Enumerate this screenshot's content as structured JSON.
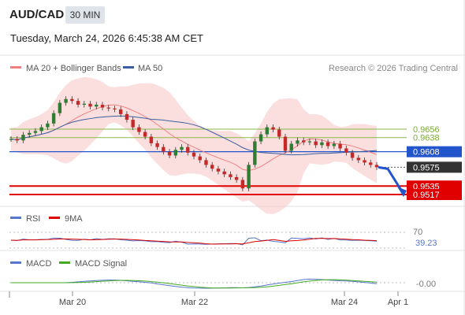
{
  "header": {
    "symbol": "AUD/CAD",
    "timeframe": "30 MIN",
    "datetime": "Tuesday, March 24, 2026 6:45:38 AM CET"
  },
  "legend": {
    "ma20": "MA 20 + Bollinger Bands",
    "ma50": "MA 50",
    "credit": "Research © 2026 Trading Central"
  },
  "colors": {
    "up": "#2e7d32",
    "down": "#c62828",
    "ma20": "#f08080",
    "ma50": "#3a5fa0",
    "band": "#f7c5c5",
    "support": "#e00000",
    "pivot": "#2255cc",
    "resistance": "#8ab84a",
    "last": "#333333",
    "rsi": "#5577cc",
    "rsi_ma": "#dd0000",
    "macd": "#5577cc",
    "macd_signal": "#44aa22"
  },
  "chart_data": {
    "type": "candlestick",
    "levels": [
      {
        "name": "resistance-1",
        "value": 0.9656,
        "label": "0.9656"
      },
      {
        "name": "resistance-2",
        "value": 0.9638,
        "label": "0.9638"
      },
      {
        "name": "pivot",
        "value": 0.9608,
        "label": "0.9608"
      },
      {
        "name": "last-price",
        "value": 0.9575,
        "label": "0.9575"
      },
      {
        "name": "support-1",
        "value": 0.9535,
        "label": "0.9535"
      },
      {
        "name": "support-2",
        "value": 0.9517,
        "label": "0.9517"
      }
    ],
    "price_series": [
      0.9635,
      0.9632,
      0.9644,
      0.9648,
      0.9652,
      0.966,
      0.9668,
      0.969,
      0.9712,
      0.972,
      0.9716,
      0.9708,
      0.971,
      0.9704,
      0.9708,
      0.9702,
      0.97,
      0.9698,
      0.9688,
      0.9676,
      0.966,
      0.965,
      0.964,
      0.9626,
      0.9618,
      0.9608,
      0.96,
      0.9612,
      0.9618,
      0.9606,
      0.9598,
      0.959,
      0.958,
      0.9572,
      0.9566,
      0.956,
      0.9554,
      0.9548,
      0.953,
      0.958,
      0.963,
      0.9645,
      0.966,
      0.9655,
      0.964,
      0.961,
      0.9625,
      0.9632,
      0.9628,
      0.963,
      0.9622,
      0.9628,
      0.962,
      0.9625,
      0.9615,
      0.9606,
      0.9595,
      0.959,
      0.9585,
      0.958,
      0.9575
    ],
    "projection": {
      "from": 0.9575,
      "to": 0.9517
    },
    "rsi": {
      "label": "RSI",
      "ma_label": "9MA",
      "level": "70",
      "value": "39.23"
    },
    "macd": {
      "label": "MACD",
      "signal_label": "MACD Signal",
      "value": "-0.00"
    },
    "x_ticks": [
      "Mar 20",
      "Mar 22",
      "Mar 24",
      "Apr 1"
    ]
  }
}
